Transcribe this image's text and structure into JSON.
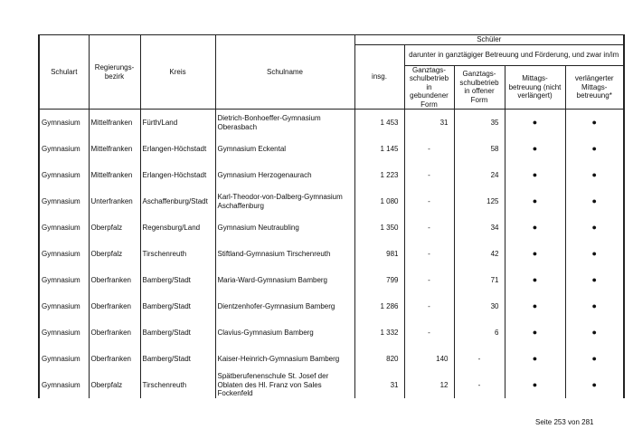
{
  "header": {
    "schulart": "Schulart",
    "regierungsbezirk": "Regierungs-bezirk",
    "kreis": "Kreis",
    "schulname": "Schulname",
    "schueler": "Schüler",
    "insg": "insg.",
    "darunter": "darunter in ganztägiger Betreuung und Förderung, und zwar in/im",
    "gebunden": "Ganztags-schulbetrieb in gebundener Form",
    "offen": "Ganztags-schulbetrieb in offener Form",
    "mittags": "Mittags-betreuung (nicht verlängert)",
    "verlaengert": "verlängerter Mittags-betreuung*"
  },
  "rows": [
    {
      "schulart": "Gymnasium",
      "bezirk": "Mittelfranken",
      "kreis": "Fürth/Land",
      "schulname": "Dietrich-Bonhoeffer-Gymnasium Oberasbach",
      "insg": "1 453",
      "gebunden": "31",
      "offen": "35",
      "mittags": "●",
      "verlaengert": "●"
    },
    {
      "schulart": "Gymnasium",
      "bezirk": "Mittelfranken",
      "kreis": "Erlangen-Höchstadt",
      "schulname": "Gymnasium Eckental",
      "insg": "1 145",
      "gebunden": "-",
      "offen": "58",
      "mittags": "●",
      "verlaengert": "●"
    },
    {
      "schulart": "Gymnasium",
      "bezirk": "Mittelfranken",
      "kreis": "Erlangen-Höchstadt",
      "schulname": "Gymnasium Herzogenaurach",
      "insg": "1 223",
      "gebunden": "-",
      "offen": "24",
      "mittags": "●",
      "verlaengert": "●"
    },
    {
      "schulart": "Gymnasium",
      "bezirk": "Unterfranken",
      "kreis": "Aschaffenburg/Stadt",
      "schulname": "Karl-Theodor-von-Dalberg-Gymnasium Aschaffenburg",
      "insg": "1 080",
      "gebunden": "-",
      "offen": "125",
      "mittags": "●",
      "verlaengert": "●"
    },
    {
      "schulart": "Gymnasium",
      "bezirk": "Oberpfalz",
      "kreis": "Regensburg/Land",
      "schulname": "Gymnasium Neutraubling",
      "insg": "1 350",
      "gebunden": "-",
      "offen": "34",
      "mittags": "●",
      "verlaengert": "●"
    },
    {
      "schulart": "Gymnasium",
      "bezirk": "Oberpfalz",
      "kreis": "Tirschenreuth",
      "schulname": "Stiftland-Gymnasium Tirschenreuth",
      "insg": "981",
      "gebunden": "-",
      "offen": "42",
      "mittags": "●",
      "verlaengert": "●"
    },
    {
      "schulart": "Gymnasium",
      "bezirk": "Oberfranken",
      "kreis": "Bamberg/Stadt",
      "schulname": "Maria-Ward-Gymnasium Bamberg",
      "insg": "799",
      "gebunden": "-",
      "offen": "71",
      "mittags": "●",
      "verlaengert": "●"
    },
    {
      "schulart": "Gymnasium",
      "bezirk": "Oberfranken",
      "kreis": "Bamberg/Stadt",
      "schulname": "Dientzenhofer-Gymnasium Bamberg",
      "insg": "1 286",
      "gebunden": "-",
      "offen": "30",
      "mittags": "●",
      "verlaengert": "●"
    },
    {
      "schulart": "Gymnasium",
      "bezirk": "Oberfranken",
      "kreis": "Bamberg/Stadt",
      "schulname": "Clavius-Gymnasium Bamberg",
      "insg": "1 332",
      "gebunden": "-",
      "offen": "6",
      "mittags": "●",
      "verlaengert": "●"
    },
    {
      "schulart": "Gymnasium",
      "bezirk": "Oberfranken",
      "kreis": "Bamberg/Stadt",
      "schulname": "Kaiser-Heinrich-Gymnasium Bamberg",
      "insg": "820",
      "gebunden": "140",
      "offen": "-",
      "mittags": "●",
      "verlaengert": "●"
    },
    {
      "schulart": "Gymnasium",
      "bezirk": "Oberpfalz",
      "kreis": "Tirschenreuth",
      "schulname": "Spätberufenenschule St. Josef der Oblaten des Hl. Franz von Sales Fockenfeld",
      "insg": "31",
      "gebunden": "12",
      "offen": "-",
      "mittags": "●",
      "verlaengert": "●"
    }
  ],
  "footer": "Seite 253 von 281"
}
